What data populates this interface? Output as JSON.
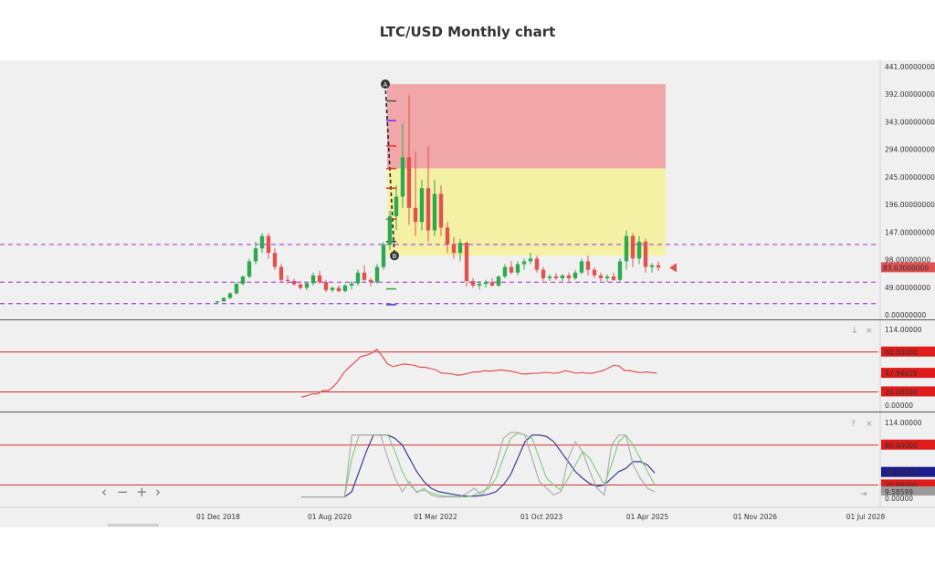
{
  "title": "LTC/USD Monthly chart",
  "chart_data": {
    "type": "candlestick",
    "x_ticks": [
      "01 Dec 2018",
      "01 Aug 2020",
      "01 Mar 2022",
      "01 Oct 2023",
      "01 Apr 2025",
      "01 Nov 2026",
      "01 Jul 2028"
    ],
    "price_panel": {
      "y_ticks": [
        "441.00000000",
        "392.00000000",
        "343.00000000",
        "294.00000000",
        "245.00000000",
        "196.00000000",
        "147.00000000",
        "98.00000000",
        "49.00000000",
        "0.00000000"
      ],
      "ylim": [
        0,
        441
      ],
      "last_price_label": "83.63000000",
      "dashed_levels": [
        125,
        58,
        20
      ],
      "candles": [
        [
          22,
          24,
          20,
          24
        ],
        [
          24,
          31,
          23,
          30
        ],
        [
          30,
          40,
          28,
          38
        ],
        [
          38,
          58,
          36,
          55
        ],
        [
          55,
          70,
          52,
          68
        ],
        [
          68,
          100,
          65,
          95
        ],
        [
          95,
          130,
          90,
          118
        ],
        [
          118,
          145,
          110,
          140
        ],
        [
          140,
          145,
          100,
          110
        ],
        [
          110,
          118,
          80,
          85
        ],
        [
          85,
          90,
          58,
          62
        ],
        [
          62,
          70,
          55,
          60
        ],
        [
          60,
          64,
          52,
          54
        ],
        [
          54,
          60,
          45,
          48
        ],
        [
          48,
          58,
          44,
          56
        ],
        [
          56,
          75,
          52,
          70
        ],
        [
          70,
          78,
          55,
          58
        ],
        [
          58,
          62,
          40,
          44
        ],
        [
          44,
          50,
          40,
          48
        ],
        [
          48,
          52,
          40,
          42
        ],
        [
          42,
          55,
          40,
          52
        ],
        [
          52,
          60,
          45,
          56
        ],
        [
          56,
          80,
          52,
          75
        ],
        [
          75,
          88,
          60,
          62
        ],
        [
          62,
          65,
          50,
          58
        ],
        [
          58,
          90,
          55,
          85
        ],
        [
          85,
          130,
          80,
          125
        ],
        [
          125,
          185,
          115,
          175
        ],
        [
          175,
          230,
          150,
          210
        ],
        [
          210,
          340,
          190,
          280
        ],
        [
          280,
          390,
          160,
          190
        ],
        [
          190,
          290,
          140,
          165
        ],
        [
          165,
          240,
          150,
          225
        ],
        [
          225,
          300,
          130,
          150
        ],
        [
          150,
          240,
          140,
          215
        ],
        [
          215,
          230,
          140,
          155
        ],
        [
          155,
          165,
          110,
          125
        ],
        [
          125,
          138,
          100,
          110
        ],
        [
          110,
          135,
          95,
          128
        ],
        [
          128,
          130,
          50,
          60
        ],
        [
          60,
          65,
          48,
          52
        ],
        [
          52,
          60,
          45,
          55
        ],
        [
          55,
          62,
          48,
          58
        ],
        [
          58,
          65,
          50,
          52
        ],
        [
          52,
          70,
          50,
          68
        ],
        [
          68,
          90,
          65,
          85
        ],
        [
          85,
          95,
          72,
          75
        ],
        [
          75,
          95,
          70,
          90
        ],
        [
          90,
          100,
          80,
          95
        ],
        [
          95,
          110,
          90,
          100
        ],
        [
          100,
          105,
          75,
          80
        ],
        [
          80,
          85,
          60,
          65
        ],
        [
          65,
          72,
          60,
          68
        ],
        [
          68,
          74,
          62,
          65
        ],
        [
          65,
          72,
          60,
          70
        ],
        [
          70,
          75,
          60,
          65
        ],
        [
          65,
          80,
          62,
          75
        ],
        [
          75,
          100,
          72,
          95
        ],
        [
          95,
          105,
          70,
          80
        ],
        [
          80,
          85,
          65,
          70
        ],
        [
          70,
          75,
          60,
          65
        ],
        [
          65,
          72,
          58,
          68
        ],
        [
          68,
          75,
          60,
          62
        ],
        [
          62,
          100,
          60,
          95
        ],
        [
          95,
          150,
          80,
          140
        ],
        [
          140,
          145,
          85,
          100
        ],
        [
          100,
          140,
          90,
          130
        ],
        [
          130,
          135,
          75,
          85
        ],
        [
          85,
          92,
          75,
          88
        ],
        [
          88,
          95,
          78,
          84
        ]
      ],
      "fib_box": {
        "top_red": 410,
        "top_yellow": 260,
        "bottom": 105
      }
    },
    "rsi_panel": {
      "y_ticks": [
        "114.00000",
        "80.00000",
        "47.94629",
        "20.00000",
        "0.00000"
      ],
      "ylim": [
        0,
        114
      ],
      "levels": [
        80,
        20
      ],
      "current": 47.94629,
      "values": [
        12,
        14,
        17,
        17,
        22,
        22,
        28,
        38,
        50,
        58,
        65,
        73,
        75,
        78,
        84,
        74,
        62,
        58,
        60,
        62,
        61,
        60,
        57,
        57,
        55,
        53,
        48,
        48,
        47,
        45,
        46,
        48,
        50,
        50,
        52,
        51,
        52,
        53,
        52,
        51,
        49,
        47,
        47,
        48,
        48,
        49,
        49,
        48,
        49,
        52,
        50,
        48,
        49,
        48,
        48,
        50,
        52,
        56,
        60,
        59,
        52,
        52,
        50,
        49,
        50,
        49,
        48
      ]
    },
    "stoch_panel": {
      "y_ticks": [
        "114.00000",
        "80.00000",
        "38.91407",
        "20.00000",
        "0.00000"
      ],
      "ylim": [
        0,
        114
      ],
      "levels": [
        80,
        20
      ],
      "current_blue": 38.91407,
      "current_gray": 9.58599,
      "series": [
        {
          "color": "#2d2d8c",
          "values": [
            2,
            2,
            2,
            2,
            2,
            2,
            2,
            10,
            40,
            70,
            95,
            95,
            95,
            90,
            80,
            60,
            40,
            25,
            15,
            10,
            8,
            6,
            4,
            3,
            3,
            4,
            6,
            10,
            20,
            35,
            60,
            85,
            95,
            95,
            93,
            85,
            70,
            55,
            40,
            30,
            22,
            18,
            20,
            30,
            40,
            45,
            55,
            55,
            50,
            38
          ]
        },
        {
          "color": "#7ecb7e",
          "values": [
            2,
            2,
            2,
            2,
            2,
            2,
            2,
            60,
            95,
            95,
            95,
            95,
            95,
            70,
            40,
            20,
            10,
            12,
            8,
            5,
            3,
            3,
            2,
            2,
            5,
            10,
            15,
            30,
            60,
            90,
            98,
            95,
            90,
            60,
            30,
            20,
            12,
            30,
            50,
            70,
            60,
            40,
            20,
            50,
            85,
            95,
            80,
            60,
            40,
            20
          ]
        },
        {
          "color": "#a9a9a9",
          "values": [
            2,
            2,
            2,
            2,
            2,
            2,
            2,
            95,
            95,
            95,
            95,
            95,
            60,
            30,
            10,
            25,
            8,
            15,
            5,
            2,
            2,
            2,
            2,
            8,
            15,
            5,
            20,
            50,
            90,
            99,
            99,
            95,
            60,
            25,
            15,
            5,
            10,
            60,
            85,
            70,
            40,
            15,
            5,
            80,
            95,
            95,
            50,
            30,
            15,
            9.6
          ]
        }
      ]
    },
    "nav_controls": [
      "‹",
      "−",
      "+",
      "›"
    ],
    "labels": {
      "a": "A",
      "b": "B"
    }
  }
}
